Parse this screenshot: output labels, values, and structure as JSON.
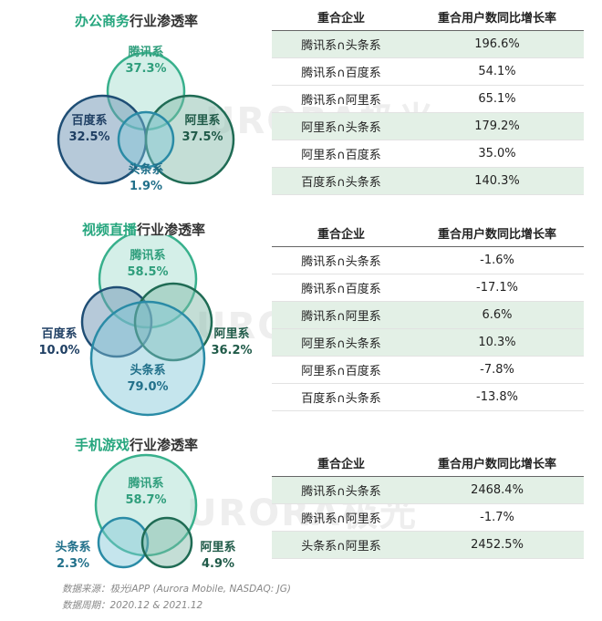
{
  "sections": [
    {
      "title_highlight": "办公商务",
      "title_rest": "行业渗透率",
      "venn": {
        "tencent": {
          "name": "腾讯系",
          "value": "37.3%"
        },
        "baidu": {
          "name": "百度系",
          "value": "32.5%"
        },
        "alibaba": {
          "name": "阿里系",
          "value": "37.5%"
        },
        "toutiao": {
          "name": "头条系",
          "value": "1.9%"
        }
      },
      "table": {
        "col1": "重合企业",
        "col2": "重合用户数同比增长率",
        "rows": [
          {
            "pair": "腾讯系∩头条系",
            "rate": "196.6%"
          },
          {
            "pair": "腾讯系∩百度系",
            "rate": "54.1%"
          },
          {
            "pair": "腾讯系∩阿里系",
            "rate": "65.1%"
          },
          {
            "pair": "阿里系∩头条系",
            "rate": "179.2%"
          },
          {
            "pair": "阿里系∩百度系",
            "rate": "35.0%"
          },
          {
            "pair": "百度系∩头条系",
            "rate": "140.3%"
          }
        ]
      }
    },
    {
      "title_highlight": "视频直播",
      "title_rest": "行业渗透率",
      "venn": {
        "tencent": {
          "name": "腾讯系",
          "value": "58.5%"
        },
        "baidu": {
          "name": "百度系",
          "value": "10.0%"
        },
        "alibaba": {
          "name": "阿里系",
          "value": "36.2%"
        },
        "toutiao": {
          "name": "头条系",
          "value": "79.0%"
        }
      },
      "table": {
        "col1": "重合企业",
        "col2": "重合用户数同比增长率",
        "rows": [
          {
            "pair": "腾讯系∩头条系",
            "rate": "-1.6%"
          },
          {
            "pair": "腾讯系∩百度系",
            "rate": "-17.1%"
          },
          {
            "pair": "腾讯系∩阿里系",
            "rate": "6.6%"
          },
          {
            "pair": "阿里系∩头条系",
            "rate": "10.3%"
          },
          {
            "pair": "阿里系∩百度系",
            "rate": "-7.8%"
          },
          {
            "pair": "百度系∩头条系",
            "rate": "-13.8%"
          }
        ]
      }
    },
    {
      "title_highlight": "手机游戏",
      "title_rest": "行业渗透率",
      "venn": {
        "tencent": {
          "name": "腾讯系",
          "value": "58.7%"
        },
        "toutiao": {
          "name": "头条系",
          "value": "2.3%"
        },
        "alibaba": {
          "name": "阿里系",
          "value": "4.9%"
        }
      },
      "table": {
        "col1": "重合企业",
        "col2": "重合用户数同比增长率",
        "rows": [
          {
            "pair": "腾讯系∩头条系",
            "rate": "2468.4%"
          },
          {
            "pair": "腾讯系∩阿里系",
            "rate": "-1.7%"
          },
          {
            "pair": "头条系∩阿里系",
            "rate": "2452.5%"
          }
        ]
      }
    }
  ],
  "source": "数据来源：极光iAPP (Aurora Mobile, NASDAQ: JG)",
  "period": "数据周期：2020.12 & 2021.12",
  "watermark": "URORA极光",
  "colors": {
    "tencent_fill": "#9fdccb",
    "tencent_stroke": "#38b08c",
    "baidu_fill": "#6d93b4",
    "baidu_stroke": "#1f4e75",
    "alibaba_fill": "#7cb5a3",
    "alibaba_stroke": "#1f6b54",
    "toutiao_fill": "#7fc6d6",
    "toutiao_stroke": "#2a8ba6",
    "highlight_row": "#e3f0e6",
    "accent_green": "#26a67e"
  },
  "chart_data": [
    {
      "type": "table",
      "title": "办公商务行业渗透率",
      "penetration": {
        "腾讯系": 37.3,
        "百度系": 32.5,
        "阿里系": 37.5,
        "头条系": 1.9
      },
      "columns": [
        "重合企业",
        "重合用户数同比增长率"
      ],
      "rows": [
        [
          "腾讯系∩头条系",
          "196.6%"
        ],
        [
          "腾讯系∩百度系",
          "54.1%"
        ],
        [
          "腾讯系∩阿里系",
          "65.1%"
        ],
        [
          "阿里系∩头条系",
          "179.2%"
        ],
        [
          "阿里系∩百度系",
          "35.0%"
        ],
        [
          "百度系∩头条系",
          "140.3%"
        ]
      ]
    },
    {
      "type": "table",
      "title": "视频直播行业渗透率",
      "penetration": {
        "腾讯系": 58.5,
        "百度系": 10.0,
        "阿里系": 36.2,
        "头条系": 79.0
      },
      "columns": [
        "重合企业",
        "重合用户数同比增长率"
      ],
      "rows": [
        [
          "腾讯系∩头条系",
          "-1.6%"
        ],
        [
          "腾讯系∩百度系",
          "-17.1%"
        ],
        [
          "腾讯系∩阿里系",
          "6.6%"
        ],
        [
          "阿里系∩头条系",
          "10.3%"
        ],
        [
          "阿里系∩百度系",
          "-7.8%"
        ],
        [
          "百度系∩头条系",
          "-13.8%"
        ]
      ]
    },
    {
      "type": "table",
      "title": "手机游戏行业渗透率",
      "penetration": {
        "腾讯系": 58.7,
        "头条系": 2.3,
        "阿里系": 4.9
      },
      "columns": [
        "重合企业",
        "重合用户数同比增长率"
      ],
      "rows": [
        [
          "腾讯系∩头条系",
          "2468.4%"
        ],
        [
          "腾讯系∩阿里系",
          "-1.7%"
        ],
        [
          "头条系∩阿里系",
          "2452.5%"
        ]
      ]
    }
  ]
}
